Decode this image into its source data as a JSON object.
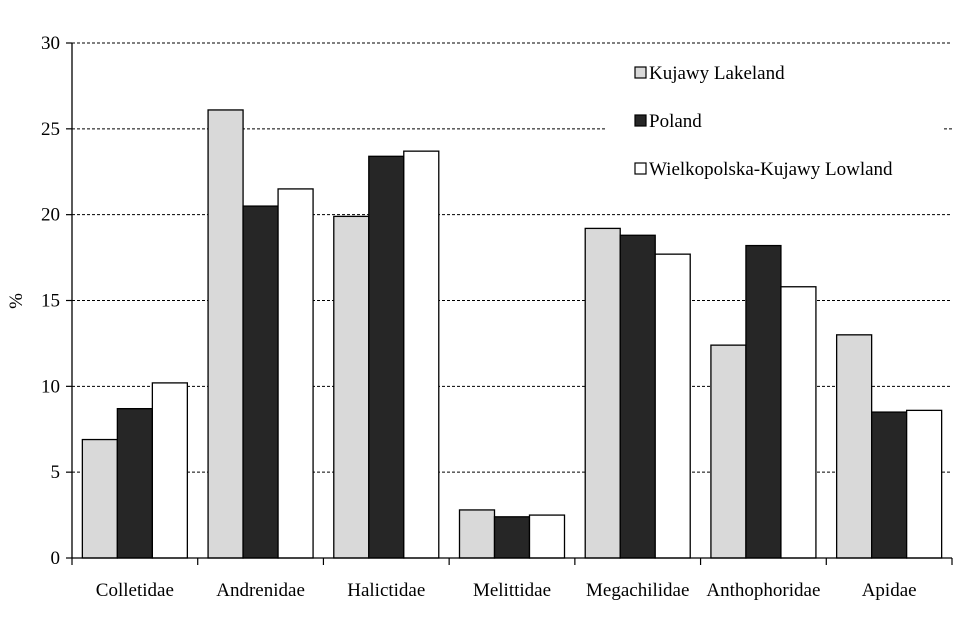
{
  "chart_data": {
    "type": "bar",
    "title": "",
    "xlabel": "",
    "ylabel": "%",
    "ylim": [
      0,
      30
    ],
    "yticks": [
      0,
      5,
      10,
      15,
      20,
      25,
      30
    ],
    "grid": "horizontal-dashed",
    "legend_position": "top-right",
    "categories": [
      "Colletidae",
      "Andrenidae",
      "Halictidae",
      "Melittidae",
      "Megachilidae",
      "Anthophoridae",
      "Apidae"
    ],
    "series": [
      {
        "name": "Kujawy Lakeland",
        "color": "#d9d9d9",
        "values": [
          6.9,
          26.1,
          19.9,
          2.8,
          19.2,
          12.4,
          13.0
        ]
      },
      {
        "name": "Poland",
        "color": "#262626",
        "values": [
          8.7,
          20.5,
          23.4,
          2.4,
          18.8,
          18.2,
          8.5
        ]
      },
      {
        "name": "Wielkopolska-Kujawy Lowland",
        "color": "#ffffff",
        "values": [
          10.2,
          21.5,
          23.7,
          2.5,
          17.7,
          15.8,
          8.6
        ]
      }
    ]
  }
}
